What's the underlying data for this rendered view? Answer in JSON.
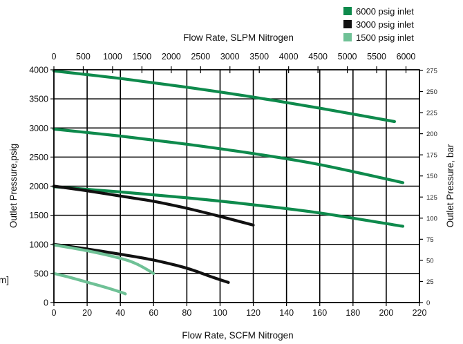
{
  "chart_data": {
    "type": "line",
    "x_bottom": {
      "label": "Flow Rate, SCFM Nitrogen",
      "range": [
        0,
        220
      ],
      "ticks": [
        "0",
        "20",
        "40",
        "60",
        "80",
        "100",
        "120",
        "140",
        "160",
        "180",
        "200",
        "220"
      ]
    },
    "x_top": {
      "label": "Flow Rate, SLPM Nitrogen",
      "ticks": [
        "0",
        "500",
        "1000",
        "1500",
        "2000",
        "2500",
        "3000",
        "3500",
        "4000",
        "4500",
        "5000",
        "5500",
        "6000"
      ]
    },
    "y_left": {
      "label": "Outlet Pressure,psig",
      "range": [
        0,
        4000
      ],
      "ticks": [
        "0",
        "500",
        "1000",
        "1500",
        "2000",
        "2500",
        "3000",
        "3500",
        "4000"
      ]
    },
    "y_right": {
      "label": "Outlet Pressure, bar",
      "ticks": [
        "0",
        "25",
        "50",
        "75",
        "100",
        "125",
        "150",
        "175",
        "200",
        "225",
        "250",
        "275"
      ]
    },
    "grid": true,
    "legend_position": "top-right",
    "series": [
      {
        "name": "6000 psig inlet",
        "color": "#0e8a4c",
        "curves": [
          {
            "x": [
              0,
              40,
              80,
              120,
              160,
              205
            ],
            "y": [
              3980,
              3850,
              3700,
              3530,
              3340,
              3110
            ]
          },
          {
            "x": [
              0,
              40,
              80,
              120,
              160,
              210
            ],
            "y": [
              2980,
              2860,
              2720,
              2560,
              2370,
              2060
            ]
          },
          {
            "x": [
              0,
              40,
              80,
              120,
              160,
              210
            ],
            "y": [
              1990,
              1900,
              1800,
              1680,
              1540,
              1310
            ]
          }
        ]
      },
      {
        "name": "3000 psig inlet",
        "color": "#111111",
        "curves": [
          {
            "x": [
              0,
              20,
              40,
              60,
              80,
              100,
              120
            ],
            "y": [
              2000,
              1920,
              1830,
              1740,
              1620,
              1480,
              1330
            ]
          },
          {
            "x": [
              0,
              20,
              40,
              60,
              80,
              95,
              105
            ],
            "y": [
              1000,
              920,
              830,
              730,
              590,
              440,
              345
            ]
          }
        ]
      },
      {
        "name": "1500 psig inlet",
        "color": "#6fc196",
        "curves": [
          {
            "x": [
              0,
              20,
              40,
              50,
              60
            ],
            "y": [
              990,
              890,
              760,
              660,
              500
            ]
          },
          {
            "x": [
              0,
              10,
              20,
              30,
              40,
              43
            ],
            "y": [
              500,
              430,
              350,
              270,
              180,
              150
            ]
          }
        ]
      }
    ],
    "edge_fragment_text": "m]"
  }
}
